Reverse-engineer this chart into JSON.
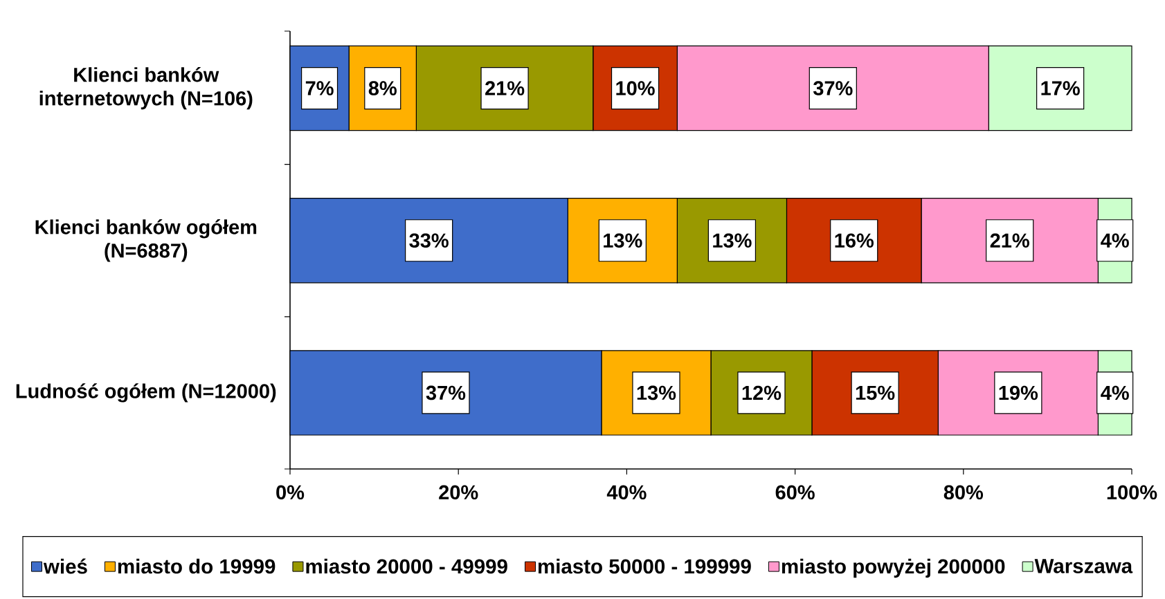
{
  "chart_data": {
    "type": "bar",
    "orientation": "horizontal",
    "stacked": true,
    "categories": [
      "Klienci banków internetowych (N=106)",
      "Klienci banków ogółem (N=6887)",
      "Ludność ogółem (N=12000)"
    ],
    "series": [
      {
        "name": "wieś",
        "color": "#3f6dca",
        "values": [
          7,
          33,
          37
        ],
        "value_labels": [
          "7%",
          "33%",
          "37%"
        ]
      },
      {
        "name": "miasto do 19999",
        "color": "#ffb000",
        "values": [
          8,
          13,
          13
        ],
        "value_labels": [
          "8%",
          "13%",
          "13%"
        ]
      },
      {
        "name": "miasto 20000 - 49999",
        "color": "#999900",
        "values": [
          21,
          13,
          12
        ],
        "value_labels": [
          "21%",
          "13%",
          "12%"
        ]
      },
      {
        "name": "miasto 50000 - 199999",
        "color": "#cc3300",
        "values": [
          10,
          16,
          15
        ],
        "value_labels": [
          "10%",
          "16%",
          "15%"
        ]
      },
      {
        "name": "miasto powyżej 200000",
        "color": "#ff99cc",
        "values": [
          37,
          21,
          19
        ],
        "value_labels": [
          "37%",
          "21%",
          "19%"
        ]
      },
      {
        "name": "Warszawa",
        "color": "#ccffcc",
        "values": [
          17,
          4,
          4
        ],
        "value_labels": [
          "17%",
          "4%",
          "4%"
        ]
      }
    ],
    "xlim": [
      0,
      100
    ],
    "xticks": [
      {
        "value": 0,
        "label": "0%"
      },
      {
        "value": 20,
        "label": "20%"
      },
      {
        "value": 40,
        "label": "40%"
      },
      {
        "value": 60,
        "label": "60%"
      },
      {
        "value": 80,
        "label": "80%"
      },
      {
        "value": 100,
        "label": "100%"
      }
    ],
    "legend": "bottom",
    "grid": false
  }
}
